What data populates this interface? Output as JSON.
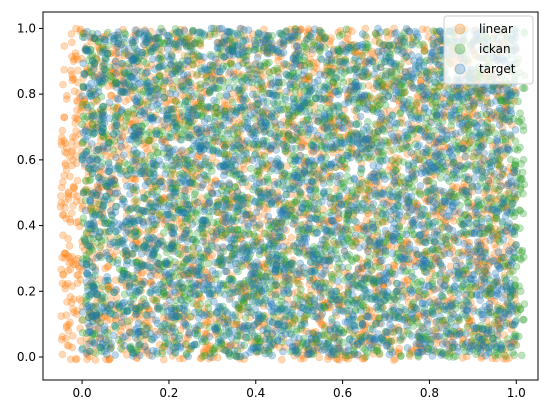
{
  "chart_data": {
    "type": "scatter",
    "title": "",
    "xlabel": "",
    "ylabel": "",
    "xlim": [
      -0.09,
      1.05
    ],
    "ylim": [
      -0.07,
      1.05
    ],
    "xticks": [
      0.0,
      0.2,
      0.4,
      0.6,
      0.8,
      1.0
    ],
    "xtick_labels": [
      "0.0",
      "0.2",
      "0.4",
      "0.6",
      "0.8",
      "1.0"
    ],
    "yticks": [
      0.0,
      0.2,
      0.4,
      0.6,
      0.8,
      1.0
    ],
    "ytick_labels": [
      "0.0",
      "0.2",
      "0.4",
      "0.6",
      "0.8",
      "1.0"
    ],
    "grid": false,
    "legend_position": "top-right",
    "series": [
      {
        "name": "linear",
        "color": "#ff7f0e",
        "alpha": 0.3,
        "x_range": [
          -0.05,
          1.0
        ],
        "y_range": [
          -0.01,
          1.0
        ],
        "point_count": 3000
      },
      {
        "name": "ickan",
        "color": "#2ca02c",
        "alpha": 0.3,
        "x_range": [
          0.0,
          1.02
        ],
        "y_range": [
          0.0,
          1.0
        ],
        "point_count": 3000
      },
      {
        "name": "target",
        "color": "#1f77b4",
        "alpha": 0.3,
        "x_range": [
          0.0,
          1.0
        ],
        "y_range": [
          0.0,
          1.0
        ],
        "point_count": 3000
      }
    ]
  }
}
